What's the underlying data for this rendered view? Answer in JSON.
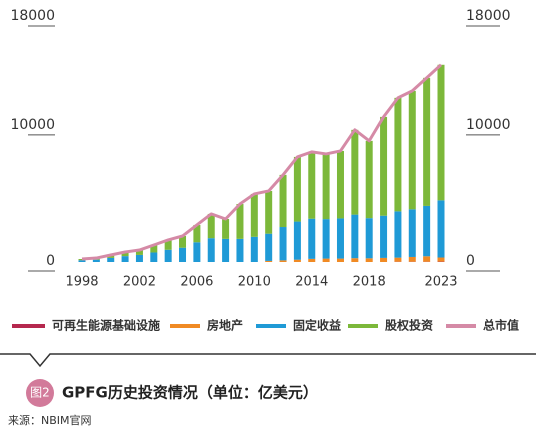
{
  "chart_data": {
    "type": "bar",
    "figure_label": "图2",
    "title": "GPFG历史投资情况（单位：亿美元）",
    "source": "来源：NBIM官网",
    "categories": [
      "1998",
      null,
      null,
      null,
      "2002",
      null,
      null,
      null,
      "2006",
      null,
      null,
      null,
      "2010",
      null,
      null,
      null,
      "2014",
      null,
      null,
      null,
      "2018",
      null,
      null,
      null,
      null,
      "2023"
    ],
    "series": [
      {
        "name": "可再生能源基础设施",
        "color": "#b5284e",
        "values": [
          null,
          null,
          null,
          null,
          null,
          null,
          null,
          null,
          null,
          null,
          null,
          null,
          null,
          null,
          null,
          null,
          null,
          null,
          null,
          null,
          null,
          null,
          20,
          20,
          20,
          30
        ]
      },
      {
        "name": "房地产",
        "color": "#f08a24",
        "values": [
          null,
          null,
          null,
          null,
          null,
          null,
          null,
          null,
          null,
          null,
          null,
          null,
          null,
          80,
          120,
          170,
          230,
          250,
          250,
          280,
          270,
          300,
          300,
          350,
          400,
          300
        ]
      },
      {
        "name": "固定收益",
        "color": "#1f9ad6",
        "values": [
          130,
          170,
          300,
          430,
          520,
          700,
          900,
          1050,
          1450,
          1750,
          1700,
          1700,
          1850,
          2000,
          2450,
          2800,
          2950,
          2900,
          2950,
          3200,
          2950,
          3100,
          3400,
          3500,
          3700,
          4200
        ]
      },
      {
        "name": "股权投资",
        "color": "#7cb83a",
        "values": [
          90,
          120,
          215,
          305,
          360,
          550,
          720,
          860,
          1270,
          1780,
          1460,
          2560,
          3150,
          3140,
          3830,
          4750,
          4910,
          4790,
          4960,
          6230,
          5680,
          7260,
          8340,
          8700,
          9410,
          9960
        ]
      },
      {
        "name": "总市值",
        "type": "line",
        "color": "#d58aa6",
        "values": [
          220,
          290,
          515,
          735,
          880,
          1250,
          1620,
          1910,
          2720,
          3530,
          3160,
          4260,
          5000,
          5220,
          6400,
          7720,
          8090,
          7940,
          8160,
          9710,
          8900,
          10660,
          12060,
          12570,
          13530,
          14490
        ]
      }
    ],
    "ylim": [
      0,
      18000
    ],
    "yticks": [
      0,
      10000,
      18000
    ],
    "y2lim": [
      0,
      18000
    ],
    "y2ticks": [
      0,
      10000,
      18000
    ]
  }
}
